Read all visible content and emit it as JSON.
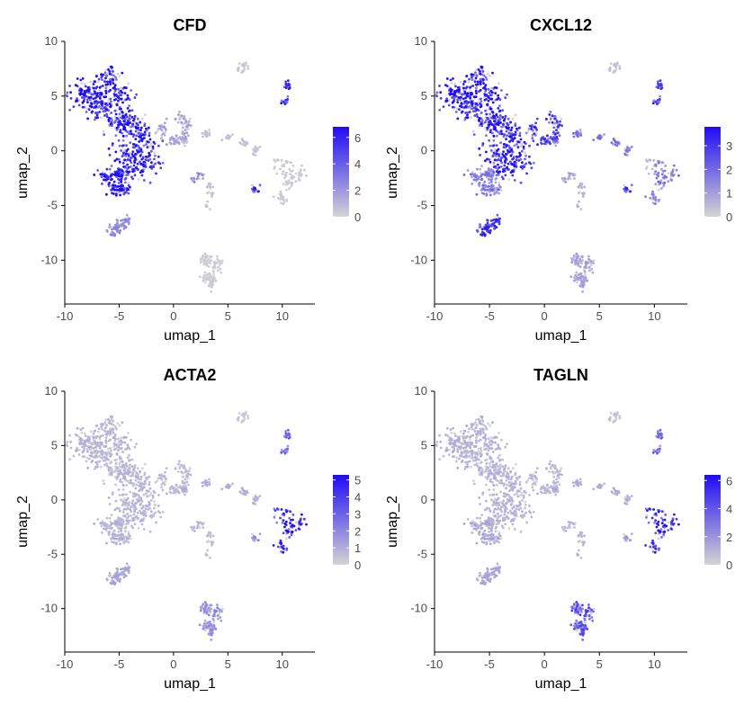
{
  "colors": {
    "low": "#d3d3d3",
    "high": "#1f0cf5",
    "axis": "#000000",
    "tick_text": "#4d4d4d"
  },
  "chart_data": [
    {
      "type": "scatter",
      "title": "CFD",
      "xlabel": "umap_1",
      "ylabel": "umap_2",
      "xlim": [
        -10,
        13
      ],
      "ylim": [
        -14,
        10
      ],
      "xticks": [
        -10,
        -5,
        0,
        5,
        10
      ],
      "yticks": [
        -10,
        -5,
        0,
        5,
        10
      ],
      "legend": {
        "placement": "right",
        "range": [
          0,
          6.8
        ],
        "ticks": [
          0,
          2,
          4,
          6
        ]
      },
      "expression_by_cluster": {
        "upper_left_mass": 5.5,
        "left_blob": 6.5,
        "bottom_left_blob": 2.0,
        "central_arm": 1.5,
        "middle_arm": 0.5,
        "small_top": 0.3,
        "right_top": 5.0,
        "right_mid_left": 5.0,
        "right_mid_right": 0.3,
        "center_small": 2.5,
        "center_small_b": 0.5,
        "bottom_blob": 0.2,
        "right_arm": 0.3
      },
      "grid": false
    },
    {
      "type": "scatter",
      "title": "CXCL12",
      "xlabel": "umap_1",
      "ylabel": "umap_2",
      "xlim": [
        -10,
        13
      ],
      "ylim": [
        -14,
        10
      ],
      "xticks": [
        -10,
        -5,
        0,
        5,
        10
      ],
      "yticks": [
        -10,
        -5,
        0,
        5,
        10
      ],
      "legend": {
        "placement": "right",
        "range": [
          0,
          3.8
        ],
        "ticks": [
          0,
          1,
          2,
          3
        ]
      },
      "expression_by_cluster": {
        "upper_left_mass": 3.0,
        "left_blob": 1.5,
        "bottom_left_blob": 2.5,
        "central_arm": 2.5,
        "middle_arm": 1.5,
        "small_top": 0.3,
        "right_top": 2.5,
        "right_mid_left": 2.5,
        "right_mid_right": 1.5,
        "center_small": 1.0,
        "center_small_b": 0.5,
        "bottom_blob": 0.8,
        "right_arm": 0.5
      },
      "grid": false
    },
    {
      "type": "scatter",
      "title": "ACTA2",
      "xlabel": "umap_1",
      "ylabel": "umap_2",
      "xlim": [
        -10,
        13
      ],
      "ylim": [
        -14,
        10
      ],
      "xticks": [
        -10,
        -5,
        0,
        5,
        10
      ],
      "yticks": [
        -10,
        -5,
        0,
        5,
        10
      ],
      "legend": {
        "placement": "right",
        "range": [
          0,
          5.3
        ],
        "ticks": [
          0,
          1,
          2,
          3,
          4,
          5
        ]
      },
      "expression_by_cluster": {
        "upper_left_mass": 0.7,
        "left_blob": 0.8,
        "bottom_left_blob": 1.0,
        "central_arm": 0.6,
        "middle_arm": 0.8,
        "small_top": 0.3,
        "right_top": 2.5,
        "right_mid_left": 1.5,
        "right_mid_right": 4.5,
        "center_small": 0.8,
        "center_small_b": 0.5,
        "bottom_blob": 1.5,
        "right_arm": 3.5
      },
      "grid": false
    },
    {
      "type": "scatter",
      "title": "TAGLN",
      "xlabel": "umap_1",
      "ylabel": "umap_2",
      "xlim": [
        -10,
        13
      ],
      "ylim": [
        -14,
        10
      ],
      "xticks": [
        -10,
        -5,
        0,
        5,
        10
      ],
      "yticks": [
        -10,
        -5,
        0,
        5,
        10
      ],
      "legend": {
        "placement": "right",
        "range": [
          0,
          6.4
        ],
        "ticks": [
          0,
          2,
          4,
          6
        ]
      },
      "expression_by_cluster": {
        "upper_left_mass": 0.9,
        "left_blob": 1.2,
        "bottom_left_blob": 1.2,
        "central_arm": 0.8,
        "middle_arm": 1.0,
        "small_top": 0.5,
        "right_top": 3.0,
        "right_mid_left": 1.5,
        "right_mid_right": 5.0,
        "center_small": 1.0,
        "center_small_b": 0.8,
        "bottom_blob": 3.5,
        "right_arm": 5.0
      },
      "grid": false
    }
  ],
  "clusters": [
    {
      "id": "upper_left_mass",
      "points": [
        [
          -7.5,
          5.5
        ],
        [
          -6,
          6.5
        ],
        [
          -5,
          5
        ],
        [
          -6.5,
          4.5
        ],
        [
          -4.5,
          3
        ],
        [
          -3.5,
          2
        ],
        [
          -2.5,
          1
        ],
        [
          -2.5,
          -1
        ],
        [
          -3.5,
          -1.5
        ],
        [
          -4.5,
          0
        ],
        [
          -5,
          2.5
        ],
        [
          -8.5,
          5
        ],
        [
          -7,
          4
        ]
      ],
      "n": 650,
      "spread": 1.0
    },
    {
      "id": "left_blob",
      "points": [
        [
          -6.2,
          -2.5
        ],
        [
          -5.5,
          -3.5
        ],
        [
          -4.5,
          -3.5
        ],
        [
          -5,
          -2.2
        ]
      ],
      "n": 130,
      "spread": 0.55
    },
    {
      "id": "bottom_left_blob",
      "points": [
        [
          -5,
          -6.8
        ],
        [
          -4.2,
          -6.3
        ],
        [
          -5.5,
          -7.3
        ]
      ],
      "n": 80,
      "spread": 0.45
    },
    {
      "id": "central_arm",
      "points": [
        [
          -1,
          2
        ],
        [
          0.5,
          3
        ],
        [
          1.2,
          2.5
        ],
        [
          1,
          1.5
        ],
        [
          0,
          1
        ]
      ],
      "n": 90,
      "spread": 0.45
    },
    {
      "id": "middle_arm",
      "points": [
        [
          1,
          0.8
        ],
        [
          3,
          1.5
        ],
        [
          5,
          1.2
        ],
        [
          6.5,
          0.8
        ],
        [
          7.5,
          0
        ]
      ],
      "n": 85,
      "spread": 0.3
    },
    {
      "id": "small_top",
      "points": [
        [
          6.5,
          8
        ],
        [
          6.2,
          7.5
        ]
      ],
      "n": 22,
      "spread": 0.35
    },
    {
      "id": "right_top",
      "points": [
        [
          10.5,
          6
        ],
        [
          10.3,
          4.5
        ]
      ],
      "n": 30,
      "spread": 0.35
    },
    {
      "id": "right_mid_left",
      "points": [
        [
          7.5,
          -3.5
        ]
      ],
      "n": 14,
      "spread": 0.3
    },
    {
      "id": "right_mid_right",
      "points": [
        [
          10.5,
          -1.5
        ],
        [
          11.5,
          -2.2
        ],
        [
          10.5,
          -3
        ],
        [
          10,
          -4.5
        ]
      ],
      "n": 80,
      "spread": 0.5
    },
    {
      "id": "center_small",
      "points": [
        [
          2.5,
          -2.3
        ],
        [
          1.8,
          -2.6
        ]
      ],
      "n": 18,
      "spread": 0.3
    },
    {
      "id": "center_small_b",
      "points": [
        [
          3.2,
          -3.2
        ],
        [
          3.5,
          -4
        ],
        [
          3.2,
          -5
        ]
      ],
      "n": 25,
      "spread": 0.35
    },
    {
      "id": "bottom_blob",
      "points": [
        [
          3,
          -10
        ],
        [
          4,
          -10.5
        ],
        [
          3.2,
          -11.5
        ],
        [
          3.5,
          -12
        ]
      ],
      "n": 120,
      "spread": 0.55
    },
    {
      "id": "right_arm",
      "points": [
        [
          9.5,
          -0.8
        ],
        [
          9.5,
          -1.8
        ]
      ],
      "n": 10,
      "spread": 0.3
    }
  ]
}
